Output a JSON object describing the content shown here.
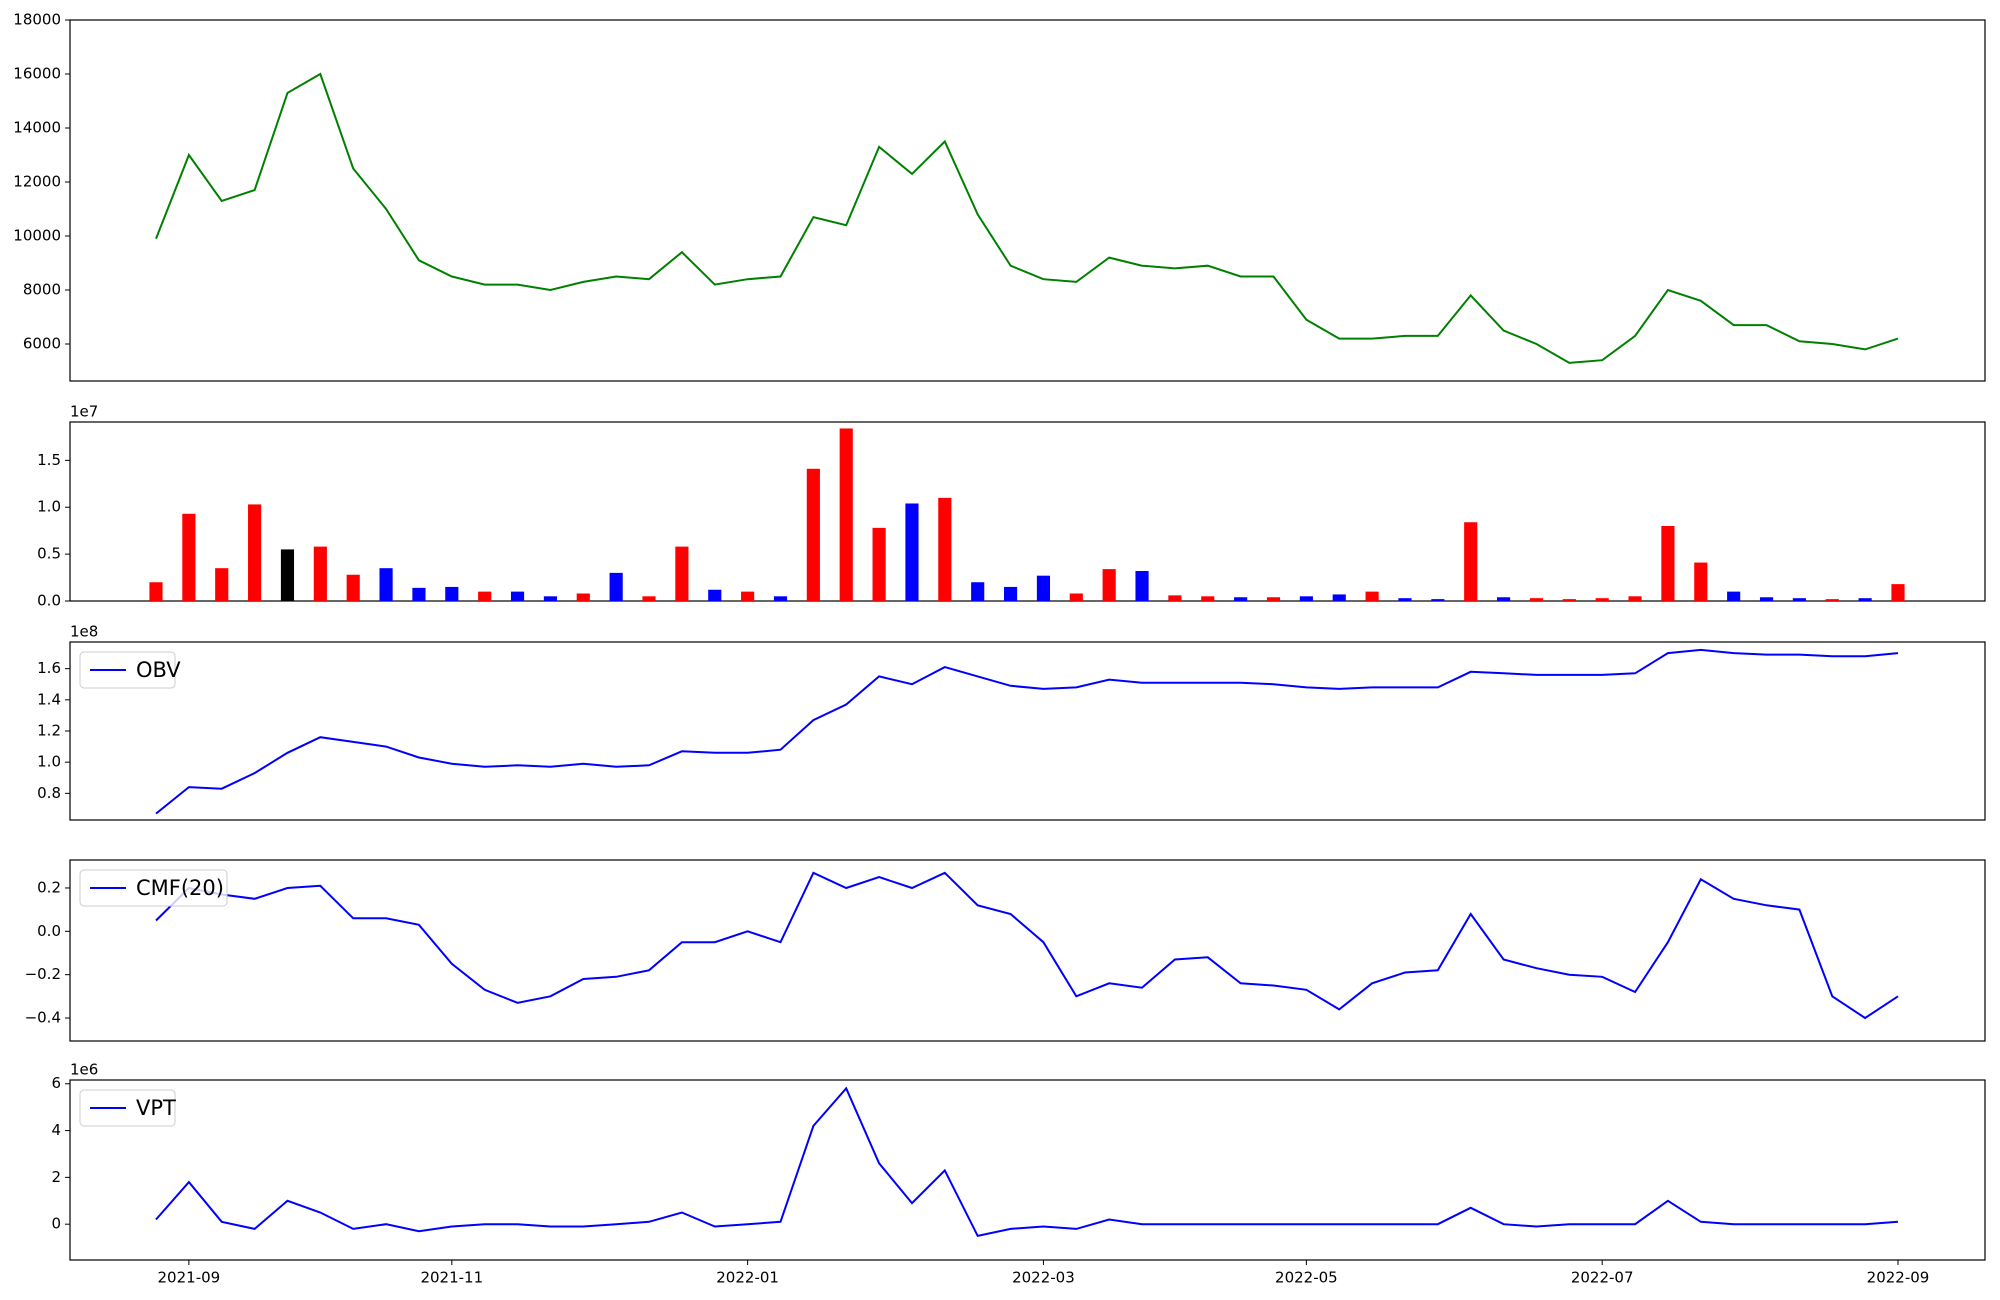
{
  "chart_data": [
    {
      "type": "line",
      "color": "#008000",
      "ylim": [
        4630,
        18000
      ],
      "yticks": [
        6000,
        8000,
        10000,
        12000,
        14000,
        16000,
        18000
      ],
      "values": [
        9900,
        13000,
        11300,
        11700,
        15300,
        16000,
        12500,
        11000,
        9100,
        8500,
        8200,
        8200,
        8000,
        8300,
        8500,
        8400,
        9400,
        8200,
        8400,
        8500,
        10700,
        10400,
        13300,
        12300,
        13500,
        10800,
        8900,
        8400,
        8300,
        9200,
        8900,
        8800,
        8900,
        8500,
        8500,
        6900,
        6200,
        6200,
        6300,
        6300,
        7800,
        6500,
        6000,
        5300,
        5400,
        6300,
        8000,
        7600,
        6700,
        6700,
        6100,
        6000,
        5800,
        6200
      ]
    },
    {
      "type": "bar",
      "offset_label": "1e7",
      "ylim": [
        0,
        1.909
      ],
      "yticks": [
        {
          "value": 0,
          "label": "0.0"
        },
        0.5,
        {
          "value": 1,
          "label": "1.0"
        },
        1.5
      ],
      "values": [
        0.2,
        0.93,
        0.35,
        1.03,
        0.55,
        0.58,
        0.28,
        0.35,
        0.14,
        0.15,
        0.1,
        0.1,
        0.05,
        0.08,
        0.3,
        0.05,
        0.58,
        0.12,
        0.1,
        0.05,
        1.41,
        1.84,
        0.78,
        1.04,
        1.1,
        0.2,
        0.15,
        0.27,
        0.08,
        0.34,
        0.32,
        0.06,
        0.05,
        0.04,
        0.04,
        0.05,
        0.07,
        0.1,
        0.03,
        0.02,
        0.84,
        0.04,
        0.03,
        0.02,
        0.03,
        0.05,
        0.8,
        0.41,
        0.1,
        0.04,
        0.03,
        0.02,
        0.03,
        0.18
      ],
      "colors": [
        "#ff0000",
        "#ff0000",
        "#ff0000",
        "#ff0000",
        "#000000",
        "#ff0000",
        "#ff0000",
        "#0000ff",
        "#0000ff",
        "#0000ff",
        "#ff0000",
        "#0000ff",
        "#0000ff",
        "#ff0000",
        "#0000ff",
        "#ff0000",
        "#ff0000",
        "#0000ff",
        "#ff0000",
        "#0000ff",
        "#ff0000",
        "#ff0000",
        "#ff0000",
        "#0000ff",
        "#ff0000",
        "#0000ff",
        "#0000ff",
        "#0000ff",
        "#ff0000",
        "#ff0000",
        "#0000ff",
        "#ff0000",
        "#ff0000",
        "#0000ff",
        "#ff0000",
        "#0000ff",
        "#0000ff",
        "#ff0000",
        "#0000ff",
        "#0000ff",
        "#ff0000",
        "#0000ff",
        "#ff0000",
        "#ff0000",
        "#ff0000",
        "#ff0000",
        "#ff0000",
        "#ff0000",
        "#0000ff",
        "#0000ff",
        "#0000ff",
        "#ff0000",
        "#0000ff",
        "#ff0000"
      ]
    },
    {
      "type": "line",
      "offset_label": "1e8",
      "legend": "upper left",
      "ylim": [
        0.629,
        1.771
      ],
      "yticks": [
        0.8,
        {
          "value": 1,
          "label": "1.0"
        },
        1.2,
        1.4,
        1.6
      ],
      "series": [
        {
          "name": "OBV",
          "color": "#0000ff",
          "values": [
            0.67,
            0.84,
            0.83,
            0.93,
            1.06,
            1.16,
            1.13,
            1.1,
            1.03,
            0.99,
            0.97,
            0.98,
            0.97,
            0.99,
            0.97,
            0.98,
            1.07,
            1.06,
            1.06,
            1.08,
            1.27,
            1.37,
            1.55,
            1.5,
            1.61,
            1.55,
            1.49,
            1.47,
            1.48,
            1.53,
            1.51,
            1.51,
            1.51,
            1.51,
            1.5,
            1.48,
            1.47,
            1.48,
            1.48,
            1.48,
            1.58,
            1.57,
            1.56,
            1.56,
            1.56,
            1.57,
            1.7,
            1.72,
            1.7,
            1.69,
            1.69,
            1.68,
            1.68,
            1.7
          ]
        }
      ]
    },
    {
      "type": "line",
      "legend": "upper left",
      "ylim": [
        -0.506,
        0.329
      ],
      "yticks": [
        {
          "value": -0.4,
          "label": "−0.4"
        },
        {
          "value": -0.2,
          "label": "−0.2"
        },
        {
          "value": 0,
          "label": "0.0"
        },
        0.2
      ],
      "series": [
        {
          "name": "CMF(20)",
          "color": "#0000ff",
          "values": [
            0.05,
            0.2,
            0.17,
            0.15,
            0.2,
            0.21,
            0.06,
            0.06,
            0.03,
            -0.15,
            -0.27,
            -0.33,
            -0.3,
            -0.22,
            -0.21,
            -0.18,
            -0.05,
            -0.05,
            0,
            -0.05,
            0.27,
            0.2,
            0.25,
            0.2,
            0.27,
            0.12,
            0.08,
            -0.05,
            -0.3,
            -0.24,
            -0.26,
            -0.13,
            -0.12,
            -0.24,
            -0.25,
            -0.27,
            -0.36,
            -0.24,
            -0.19,
            -0.18,
            0.08,
            -0.13,
            -0.17,
            -0.2,
            -0.21,
            -0.28,
            -0.05,
            0.24,
            0.15,
            0.12,
            0.1,
            -0.3,
            -0.4,
            -0.3
          ]
        }
      ]
    },
    {
      "type": "line",
      "offset_label": "1e6",
      "legend": "upper left",
      "ylim": [
        -1.53,
        6.16
      ],
      "yticks": [
        0,
        2,
        4,
        6
      ],
      "categories": [
        null,
        "2021-09",
        null,
        null,
        null,
        null,
        null,
        null,
        null,
        "2021-11",
        null,
        null,
        null,
        null,
        null,
        null,
        null,
        null,
        "2022-01",
        null,
        null,
        null,
        null,
        null,
        null,
        null,
        null,
        "2022-03",
        null,
        null,
        null,
        null,
        null,
        null,
        null,
        "2022-05",
        null,
        null,
        null,
        null,
        null,
        null,
        null,
        null,
        "2022-07",
        null,
        null,
        null,
        null,
        null,
        null,
        null,
        null,
        "2022-09"
      ],
      "series": [
        {
          "name": "VPT",
          "color": "#0000ff",
          "values": [
            0.2,
            1.8,
            0.1,
            -0.2,
            1.0,
            0.5,
            -0.2,
            0,
            -0.3,
            -0.1,
            0,
            0,
            -0.1,
            -0.1,
            0,
            0.1,
            0.5,
            -0.1,
            0,
            0.1,
            4.2,
            5.8,
            2.6,
            0.9,
            2.3,
            -0.5,
            -0.2,
            -0.1,
            -0.2,
            0.2,
            0,
            0,
            0,
            0,
            0,
            0,
            0,
            0,
            0,
            0,
            0.7,
            0,
            -0.1,
            0,
            0,
            0,
            1.0,
            0.1,
            0,
            0,
            0,
            0,
            0,
            0.1
          ]
        }
      ]
    }
  ]
}
